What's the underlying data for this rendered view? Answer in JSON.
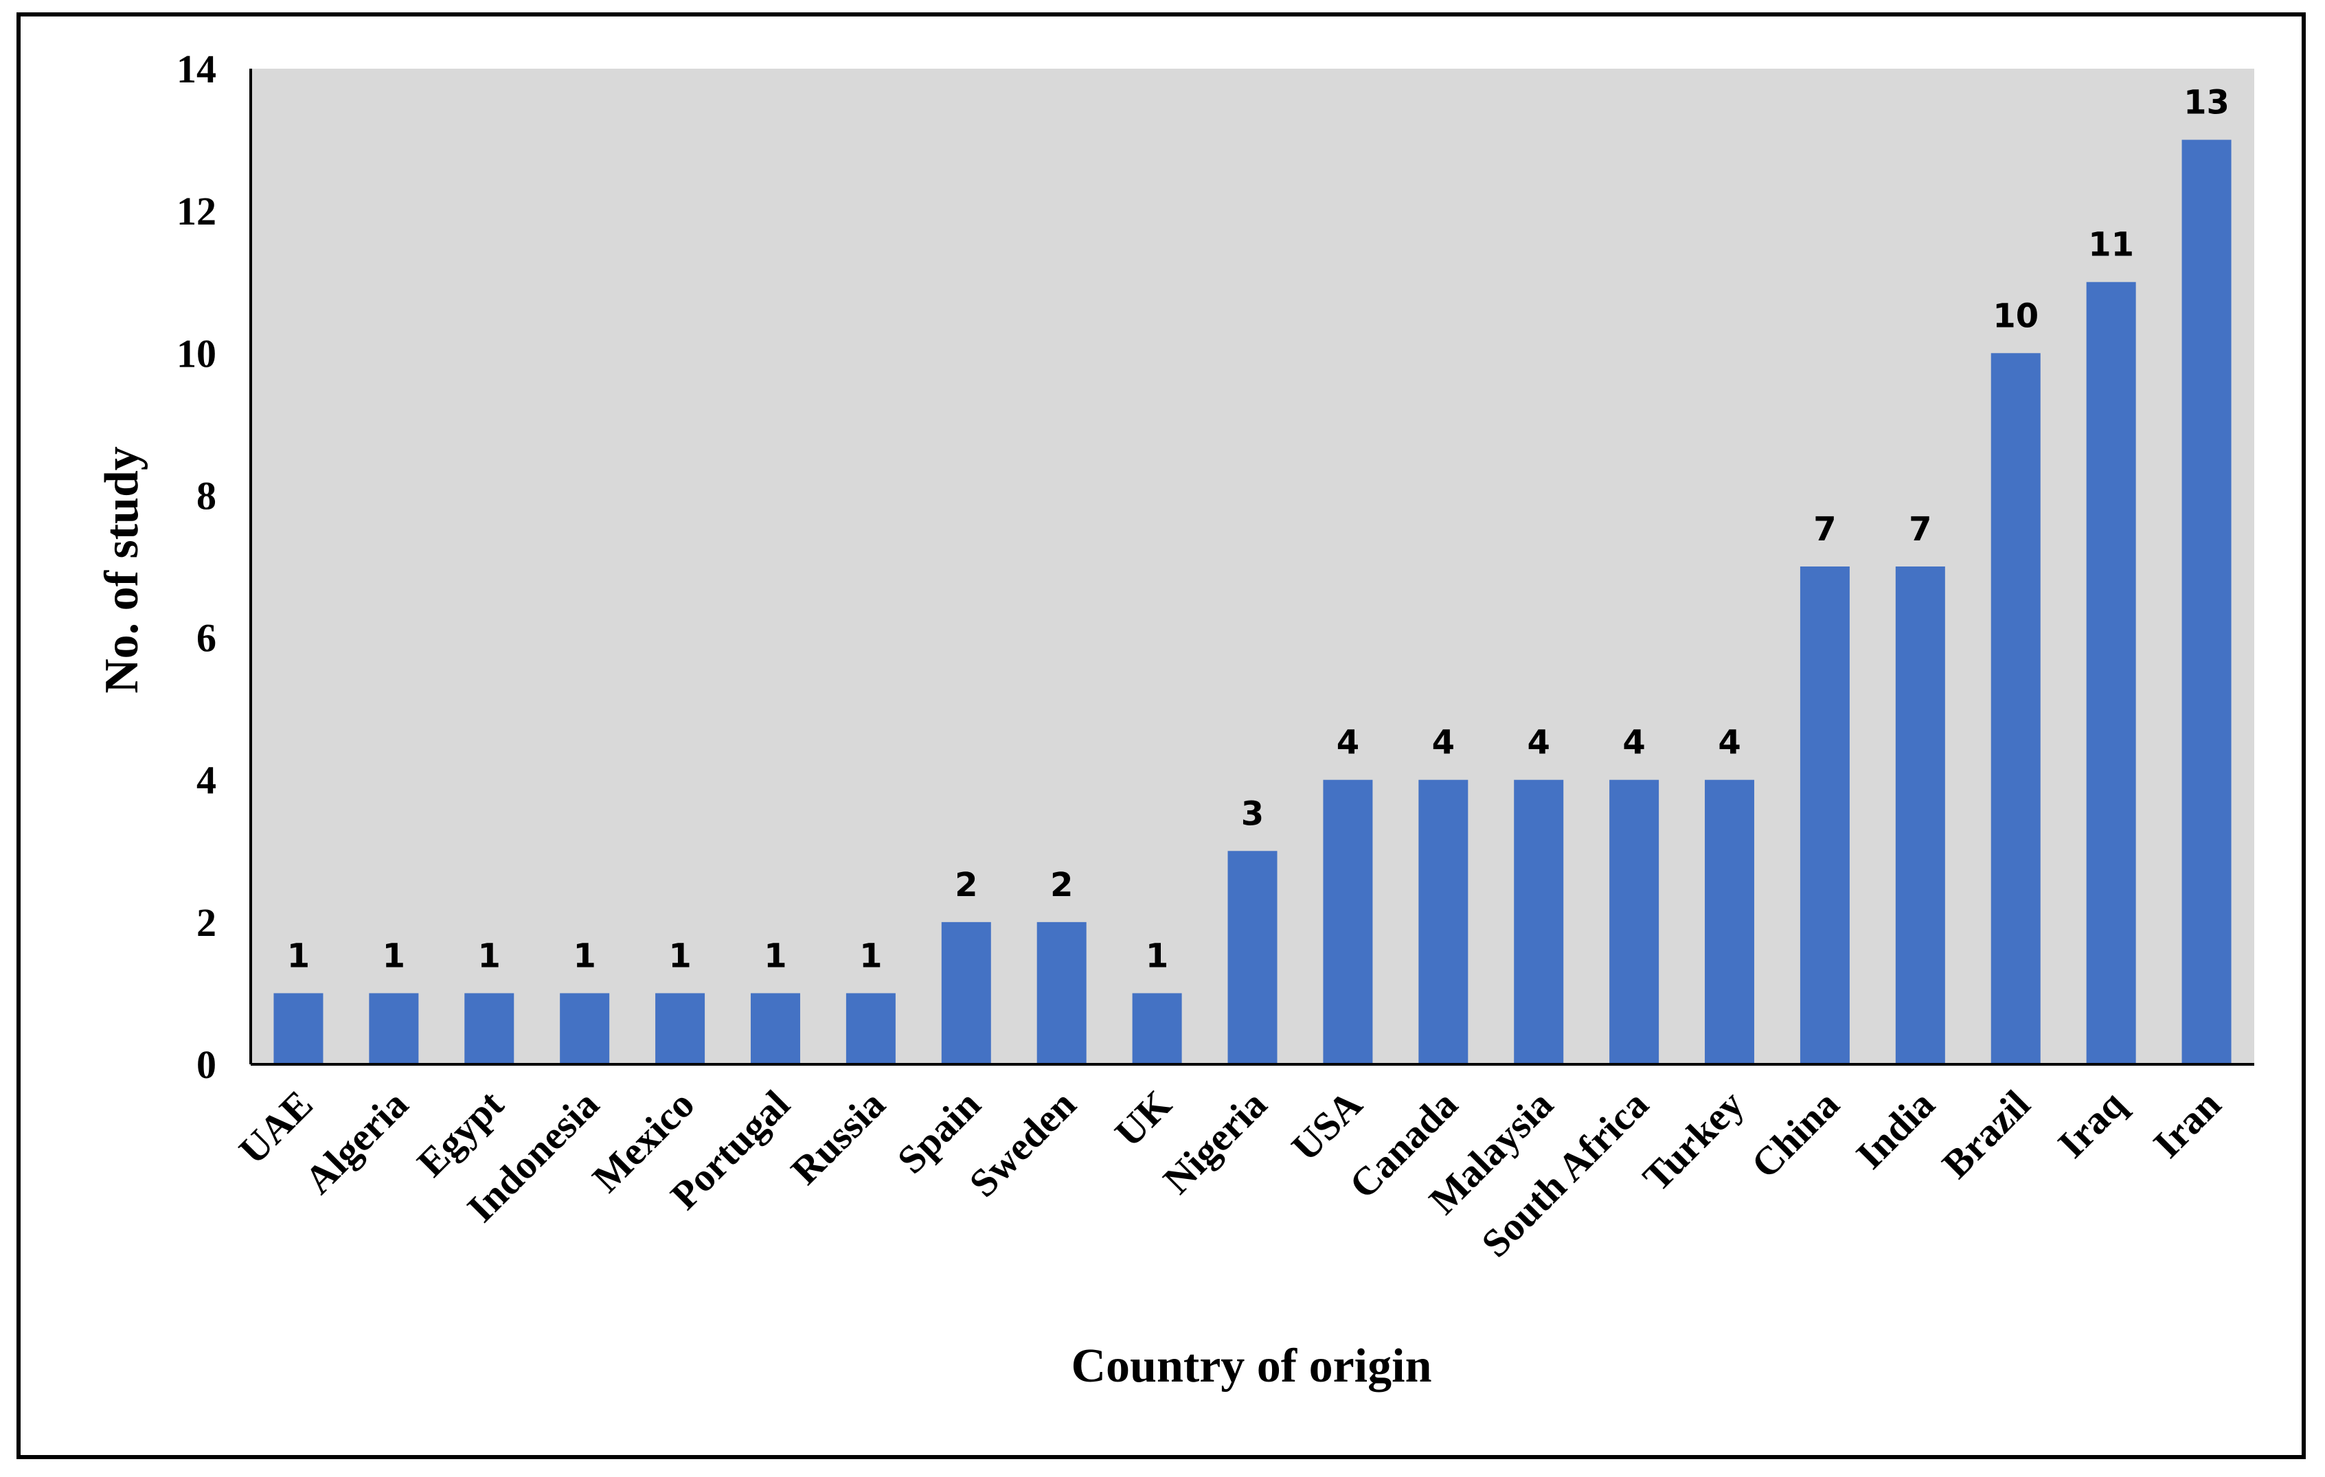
{
  "chart_data": {
    "type": "bar",
    "title": "",
    "xlabel": "Country of origin",
    "ylabel": "No. of study",
    "ylim": [
      0,
      14
    ],
    "yticks": [
      0,
      2,
      4,
      6,
      8,
      10,
      12,
      14
    ],
    "grid": false,
    "legend": "none",
    "categories": [
      "UAE",
      "Algeria",
      "Egypt",
      "Indonesia",
      "Mexico",
      "Portugal",
      "Russia",
      "Spain",
      "Sweden",
      "UK",
      "Nigeria",
      "USA",
      "Canada",
      "Malaysia",
      "South Africa",
      "Turkey",
      "China",
      "India",
      "Brazil",
      "Iraq",
      "Iran"
    ],
    "values": [
      1,
      1,
      1,
      1,
      1,
      1,
      1,
      2,
      2,
      1,
      3,
      4,
      4,
      4,
      4,
      4,
      7,
      7,
      10,
      11,
      13
    ],
    "bar_color": "#4472C4",
    "plot_background": "#D9D9D9"
  }
}
